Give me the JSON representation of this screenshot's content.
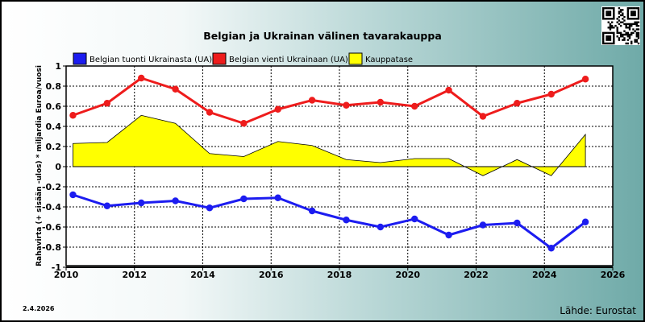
{
  "chart_data": {
    "type": "line",
    "title": "Belgian ja Ukrainan välinen tavarakauppa",
    "ylabel": "Rahavirta (+ sisään -ulos)  * miljardia Euroa/vuosi",
    "xlabel": "",
    "ylim": [
      -1,
      1
    ],
    "xlim": [
      2010,
      2026
    ],
    "x_ticks": [
      "2010",
      "2012",
      "2014",
      "2016",
      "2018",
      "2020",
      "2022",
      "2024",
      "2026"
    ],
    "y_ticks": [
      "1",
      "0.8",
      "0.6",
      "0.4",
      "0.2",
      "0",
      "-0.2",
      "-0.4",
      "-0.6",
      "-0.8",
      "-1"
    ],
    "grid": true,
    "legend_position": "top",
    "x": [
      2010.2,
      2011.2,
      2012.2,
      2013.2,
      2014.2,
      2015.2,
      2016.2,
      2017.2,
      2018.2,
      2019.2,
      2020.2,
      2021.2,
      2022.2,
      2023.2,
      2024.2,
      2025.2
    ],
    "series": [
      {
        "name": "Belgian tuonti Ukrainasta (UA)",
        "type": "line",
        "color": "#1c1cf0",
        "values": [
          -0.28,
          -0.39,
          -0.36,
          -0.34,
          -0.41,
          -0.32,
          -0.31,
          -0.44,
          -0.53,
          -0.6,
          -0.52,
          -0.68,
          -0.58,
          -0.56,
          -0.81,
          -0.55
        ]
      },
      {
        "name": "Belgian vienti Ukrainaan (UA)",
        "type": "line",
        "color": "#ee1c1c",
        "values": [
          0.51,
          0.63,
          0.88,
          0.77,
          0.54,
          0.43,
          0.57,
          0.66,
          0.61,
          0.64,
          0.6,
          0.76,
          0.5,
          0.63,
          0.72,
          0.87
        ]
      },
      {
        "name": "Kauppatase",
        "type": "area",
        "color": "#ffff00",
        "values": [
          0.23,
          0.24,
          0.51,
          0.43,
          0.13,
          0.1,
          0.25,
          0.21,
          0.07,
          0.04,
          0.08,
          0.08,
          -0.09,
          0.07,
          -0.09,
          0.32
        ]
      }
    ]
  },
  "footer": {
    "date": "2.4.2026",
    "source": "Lähde: Eurostat"
  },
  "qr_icon": "qr-code-icon"
}
